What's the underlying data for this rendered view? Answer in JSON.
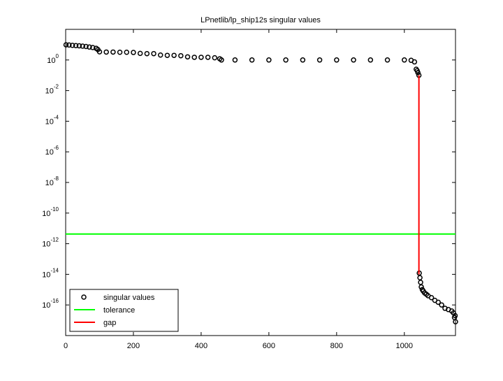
{
  "chart_data": {
    "type": "line",
    "title": "LPnetlib/lp_ship12s singular values",
    "ylog": true,
    "grid": false,
    "legend": "lower left",
    "xlim": [
      0,
      1151
    ],
    "xticks": [
      0,
      200,
      400,
      600,
      800,
      1000
    ],
    "ylim": [
      1e-18,
      100
    ],
    "yticks": [
      {
        "value": 1,
        "label": "10^0"
      },
      {
        "value": 0.01,
        "label": "10^-2"
      },
      {
        "value": 0.0001,
        "label": "10^-4"
      },
      {
        "value": 1e-06,
        "label": "10^-6"
      },
      {
        "value": 1e-08,
        "label": "10^-8"
      },
      {
        "value": 1e-10,
        "label": "10^-10"
      },
      {
        "value": 1e-12,
        "label": "10^-12"
      },
      {
        "value": 1e-14,
        "label": "10^-14"
      },
      {
        "value": 1e-16,
        "label": "10^-16"
      }
    ],
    "series": [
      {
        "name": "singular values",
        "style": "markers",
        "color": "#000000",
        "x": [
          1,
          10,
          20,
          30,
          40,
          50,
          60,
          70,
          80,
          90,
          95,
          100,
          120,
          140,
          160,
          180,
          200,
          220,
          240,
          260,
          280,
          300,
          320,
          340,
          360,
          380,
          400,
          420,
          440,
          455,
          460,
          500,
          550,
          600,
          650,
          700,
          750,
          800,
          850,
          900,
          950,
          1000,
          1020,
          1030,
          1035,
          1038,
          1040,
          1043,
          1044,
          1046,
          1048,
          1050,
          1053,
          1056,
          1060,
          1065,
          1070,
          1080,
          1090,
          1100,
          1110,
          1120,
          1130,
          1140,
          1145,
          1148,
          1150,
          1151
        ],
        "values": [
          9.8,
          9.5,
          9.0,
          8.7,
          8.4,
          8.0,
          7.6,
          7.0,
          6.5,
          5.8,
          4.8,
          3.4,
          3.3,
          3.3,
          3.2,
          3.2,
          3.1,
          2.7,
          2.6,
          2.6,
          2.1,
          2.0,
          2.0,
          1.9,
          1.6,
          1.5,
          1.5,
          1.5,
          1.4,
          1.2,
          1.0,
          1.0,
          1.0,
          1.0,
          1.0,
          1.0,
          1.0,
          1.0,
          1.0,
          1.0,
          1.0,
          1.0,
          0.95,
          0.75,
          0.25,
          0.2,
          0.15,
          0.1,
          1.2e-14,
          6e-15,
          3e-15,
          1.5e-15,
          1e-15,
          8e-16,
          6e-16,
          5e-16,
          4e-16,
          3e-16,
          2e-16,
          1.5e-16,
          1e-16,
          6e-17,
          5e-17,
          4e-17,
          3e-17,
          1.5e-17,
          2e-17,
          8e-18
        ]
      },
      {
        "name": "tolerance",
        "style": "line",
        "color": "#00ff00",
        "x": [
          0,
          1151
        ],
        "values": [
          4.3e-12,
          4.3e-12
        ]
      },
      {
        "name": "gap",
        "style": "line",
        "color": "#ff0000",
        "x": [
          1043,
          1043
        ],
        "values": [
          0.1,
          1e-14
        ]
      }
    ]
  }
}
